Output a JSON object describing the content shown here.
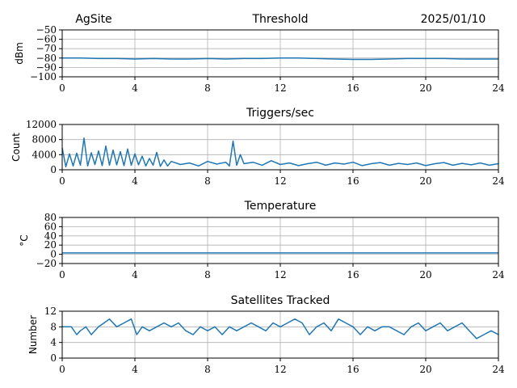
{
  "header": {
    "site": "AgSite",
    "date": "2025/01/10"
  },
  "colors": {
    "series": "#1f77b4",
    "grid": "#b0b0b0"
  },
  "chart_data": [
    {
      "type": "line",
      "title": "Threshold",
      "xlabel": "",
      "ylabel": "dBm",
      "xlim": [
        0,
        24
      ],
      "ylim": [
        -100,
        -50
      ],
      "xticks": [
        "0",
        "4",
        "8",
        "12",
        "16",
        "20",
        "24"
      ],
      "yticks": [
        "−50",
        "−60",
        "−70",
        "−80",
        "−90",
        "−100"
      ],
      "grid": true,
      "series": [
        {
          "x": [
            0,
            1,
            2,
            3,
            4,
            5,
            6,
            7,
            8,
            9,
            10,
            11,
            12,
            13,
            14,
            15,
            16,
            17,
            18,
            19,
            20,
            21,
            22,
            23,
            24
          ],
          "y": [
            -80,
            -80,
            -80.5,
            -80.5,
            -81,
            -80.5,
            -81,
            -81,
            -80.5,
            -81,
            -80.5,
            -80.5,
            -80,
            -80,
            -80.5,
            -81,
            -81.5,
            -81.5,
            -81,
            -80.5,
            -80.5,
            -80.5,
            -81,
            -81,
            -81
          ]
        }
      ]
    },
    {
      "type": "line",
      "title": "Triggers/sec",
      "xlabel": "",
      "ylabel": "Count",
      "xlim": [
        0,
        24
      ],
      "ylim": [
        0,
        12000
      ],
      "xticks": [
        "0",
        "4",
        "8",
        "12",
        "16",
        "20",
        "24"
      ],
      "yticks": [
        "12000",
        "8000",
        "4000",
        "0"
      ],
      "grid": true,
      "series": [
        {
          "x": [
            0,
            0.2,
            0.4,
            0.6,
            0.8,
            1.0,
            1.2,
            1.4,
            1.6,
            1.8,
            2.0,
            2.2,
            2.4,
            2.6,
            2.8,
            3.0,
            3.2,
            3.4,
            3.6,
            3.8,
            4.0,
            4.2,
            4.4,
            4.6,
            4.8,
            5.0,
            5.2,
            5.4,
            5.6,
            5.8,
            6.0,
            6.5,
            7.0,
            7.5,
            8.0,
            8.5,
            9.0,
            9.2,
            9.4,
            9.6,
            9.8,
            10.0,
            10.5,
            11.0,
            11.5,
            12.0,
            12.5,
            13.0,
            13.5,
            14.0,
            14.5,
            15.0,
            15.5,
            16.0,
            16.5,
            17.0,
            17.5,
            18.0,
            18.5,
            19.0,
            19.5,
            20.0,
            20.5,
            21.0,
            21.5,
            22.0,
            22.5,
            23.0,
            23.5,
            24.0
          ],
          "y": [
            5800,
            800,
            4200,
            1000,
            4400,
            1200,
            8400,
            1000,
            4500,
            1400,
            5000,
            1100,
            6300,
            1200,
            5200,
            1300,
            4800,
            1100,
            5500,
            1200,
            4200,
            1300,
            3600,
            1000,
            3000,
            1200,
            4600,
            900,
            2600,
            1000,
            2200,
            1400,
            1800,
            1000,
            2200,
            1500,
            2000,
            1000,
            7600,
            1200,
            4000,
            1600,
            2000,
            1200,
            2400,
            1400,
            1800,
            1100,
            1600,
            2000,
            1200,
            1800,
            1500,
            2000,
            1100,
            1600,
            1900,
            1200,
            1700,
            1400,
            1800,
            1100,
            1600,
            1900,
            1200,
            1700,
            1300,
            1800,
            1200,
            1600
          ]
        }
      ]
    },
    {
      "type": "line",
      "title": "Temperature",
      "xlabel": "",
      "ylabel": "°C",
      "xlim": [
        0,
        24
      ],
      "ylim": [
        -20,
        80
      ],
      "xticks": [
        "0",
        "4",
        "8",
        "12",
        "16",
        "20",
        "24"
      ],
      "yticks": [
        "80",
        "60",
        "40",
        "20",
        "0",
        "−20"
      ],
      "grid": true,
      "series": [
        {
          "x": [
            0,
            4,
            8,
            12,
            16,
            20,
            24
          ],
          "y": [
            3,
            3,
            3,
            3,
            3,
            3,
            3
          ]
        }
      ]
    },
    {
      "type": "line",
      "title": "Satellites Tracked",
      "xlabel": "",
      "ylabel": "Number",
      "xlim": [
        0,
        24
      ],
      "ylim": [
        0,
        12
      ],
      "xticks": [
        "0",
        "4",
        "8",
        "12",
        "16",
        "20",
        "24"
      ],
      "yticks": [
        "12",
        "8",
        "4",
        "0"
      ],
      "grid": true,
      "series": [
        {
          "x": [
            0,
            0.5,
            0.8,
            1.0,
            1.3,
            1.6,
            2.0,
            2.3,
            2.6,
            3.0,
            3.4,
            3.8,
            4.1,
            4.4,
            4.8,
            5.2,
            5.6,
            6.0,
            6.4,
            6.8,
            7.2,
            7.6,
            8.0,
            8.4,
            8.8,
            9.2,
            9.6,
            10.0,
            10.4,
            10.8,
            11.2,
            11.6,
            12.0,
            12.4,
            12.8,
            13.2,
            13.6,
            14.0,
            14.4,
            14.8,
            15.2,
            15.6,
            16.0,
            16.4,
            16.8,
            17.2,
            17.6,
            18.0,
            18.4,
            18.8,
            19.2,
            19.6,
            20.0,
            20.4,
            20.8,
            21.2,
            21.6,
            22.0,
            22.4,
            22.8,
            23.2,
            23.6,
            24.0
          ],
          "y": [
            8,
            8,
            6,
            7,
            8,
            6,
            8,
            9,
            10,
            8,
            9,
            10,
            6,
            8,
            7,
            8,
            9,
            8,
            9,
            7,
            6,
            8,
            7,
            8,
            6,
            8,
            7,
            8,
            9,
            8,
            7,
            9,
            8,
            9,
            10,
            9,
            6,
            8,
            9,
            7,
            10,
            9,
            8,
            6,
            8,
            7,
            8,
            8,
            7,
            6,
            8,
            9,
            7,
            8,
            9,
            7,
            8,
            9,
            7,
            5,
            6,
            7,
            6
          ]
        }
      ]
    }
  ]
}
